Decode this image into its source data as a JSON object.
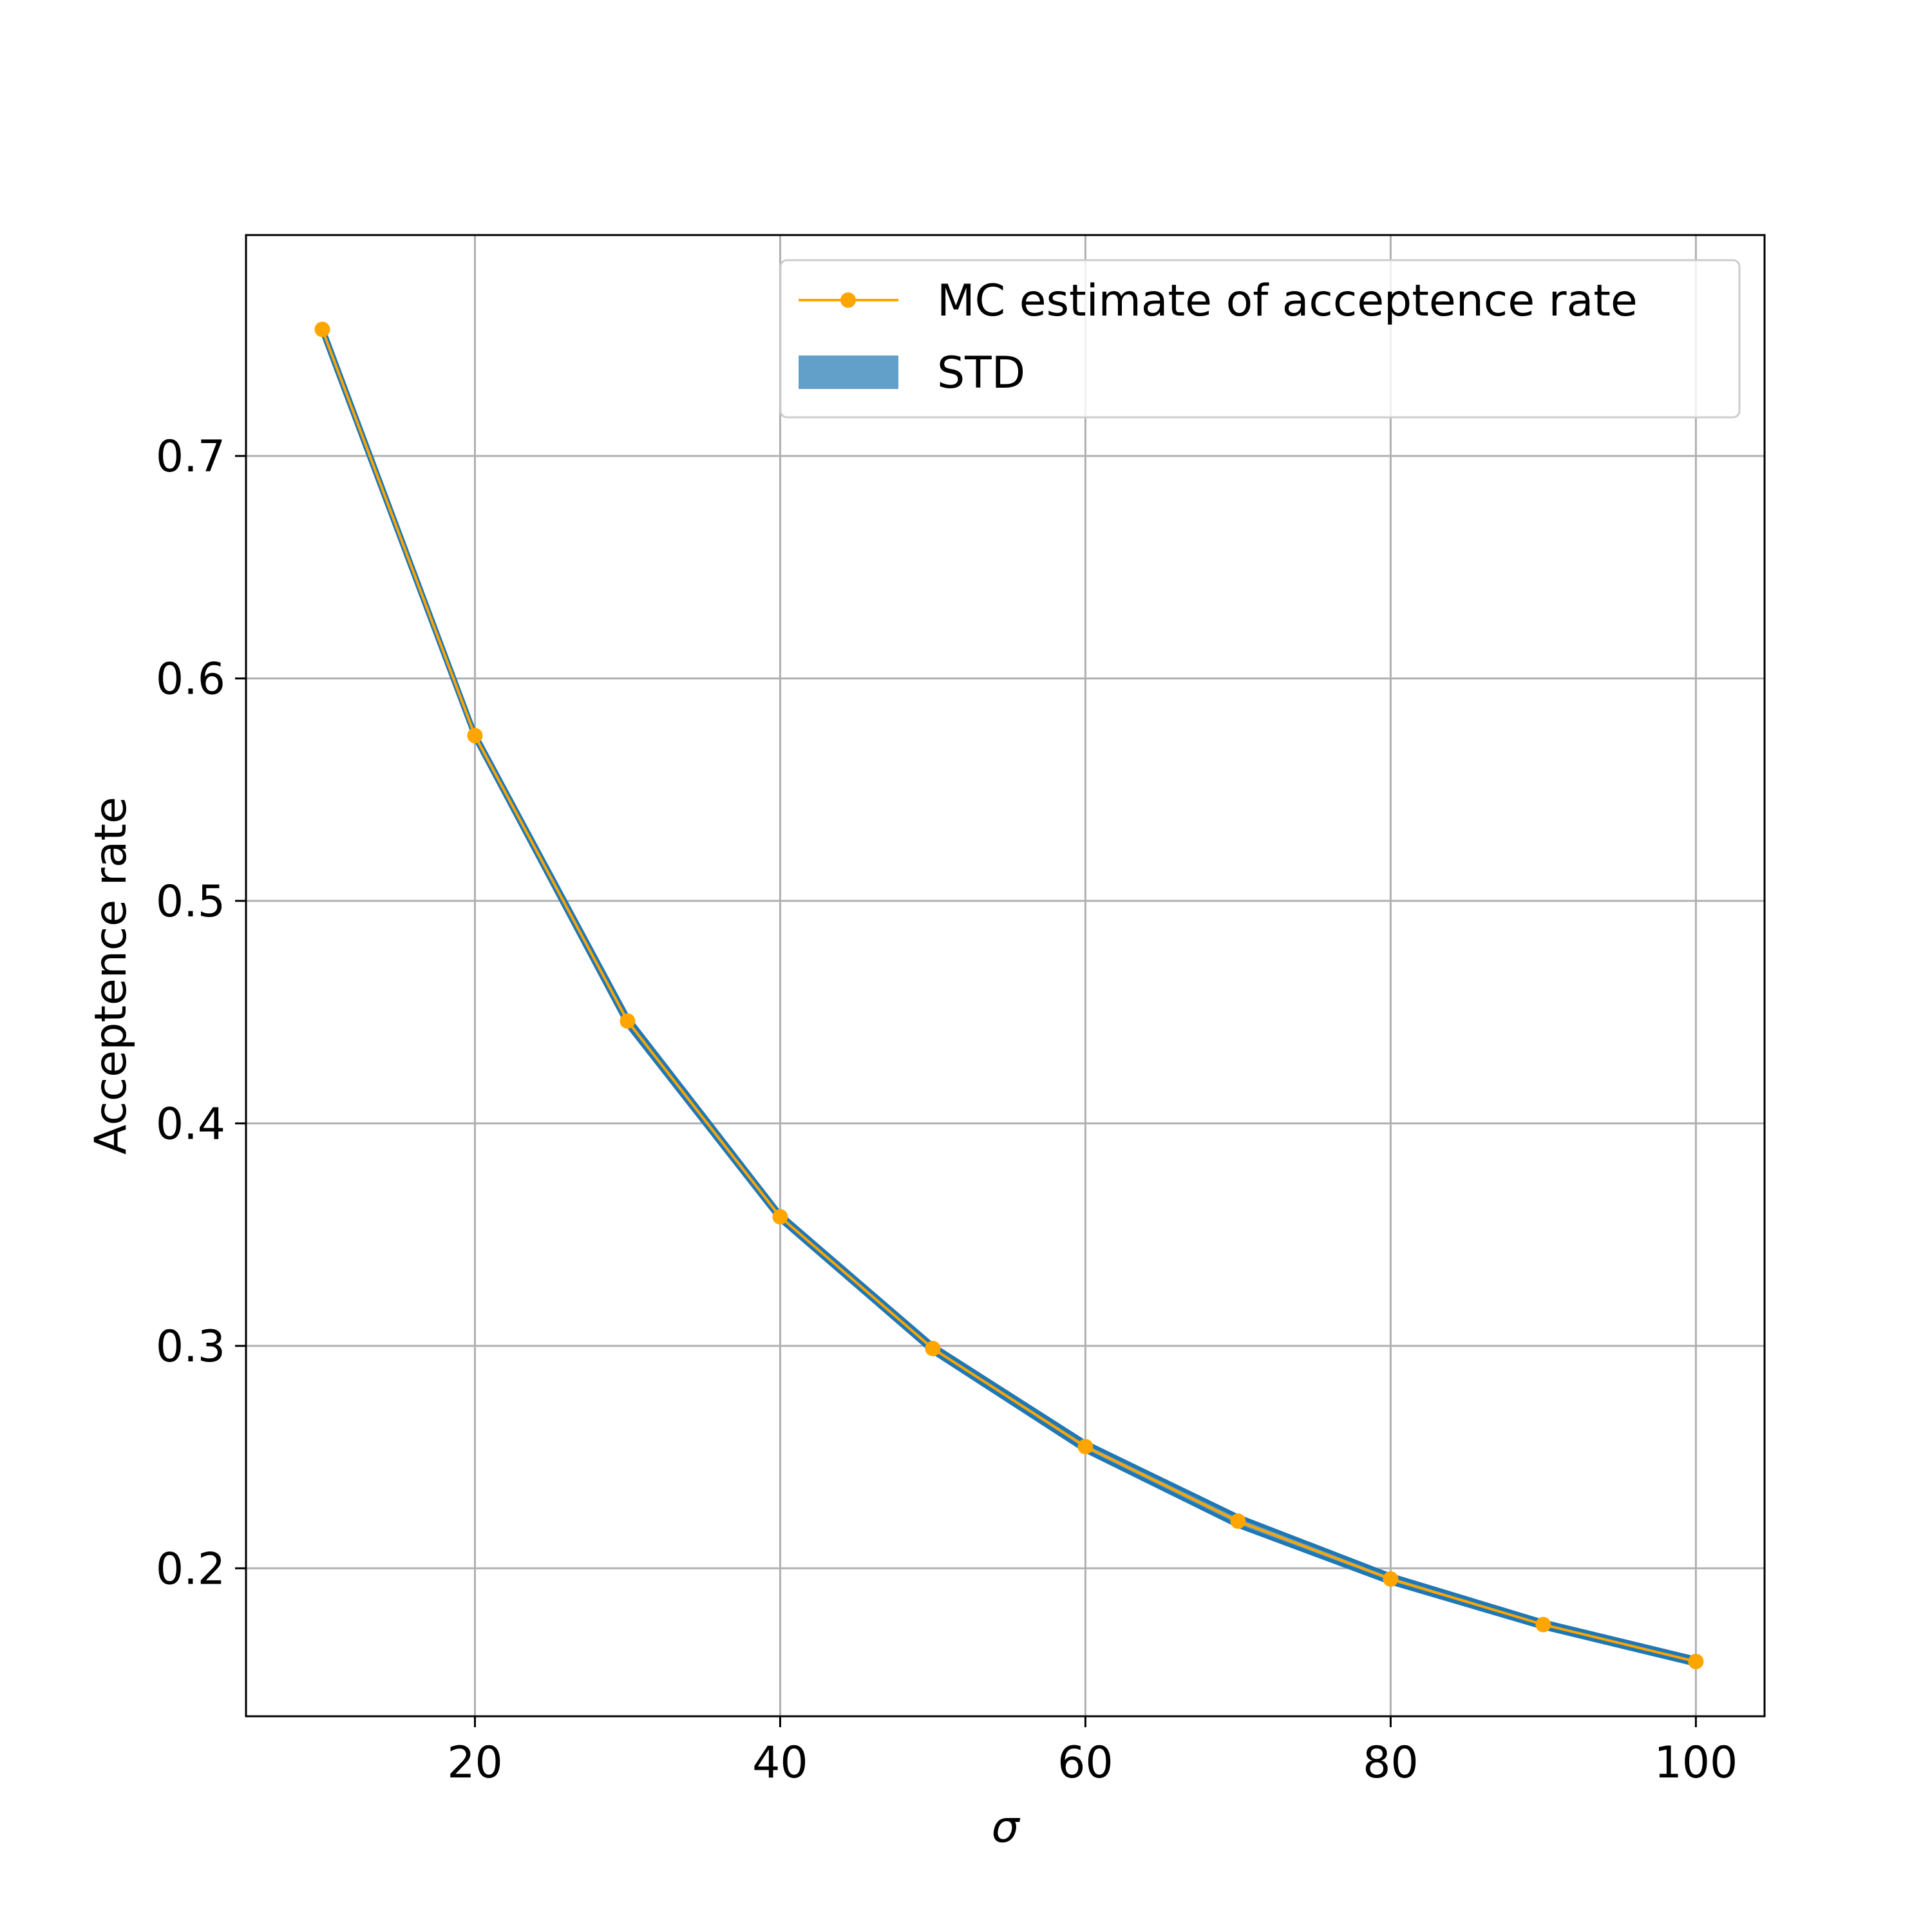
{
  "chart_data": {
    "type": "line",
    "xlabel": "σ",
    "ylabel": "Acceptence rate",
    "xlim": [
      5,
      104.5
    ],
    "ylim": [
      0.1335,
      0.7993
    ],
    "xticks": [
      20,
      40,
      60,
      80,
      100
    ],
    "xtick_labels": [
      "20",
      "40",
      "60",
      "80",
      "100"
    ],
    "yticks": [
      0.2,
      0.3,
      0.4,
      0.5,
      0.6,
      0.7
    ],
    "ytick_labels": [
      "0.2",
      "0.3",
      "0.4",
      "0.5",
      "0.6",
      "0.7"
    ],
    "grid": true,
    "legend_position": "upper right",
    "x": [
      10,
      20,
      30,
      40,
      50,
      60,
      70,
      80,
      90,
      100
    ],
    "series": [
      {
        "name": "MC estimate of acceptence rate",
        "kind": "line-with-markers",
        "color": "#ffa500",
        "values": [
          0.7569,
          0.5743,
          0.446,
          0.358,
          0.2988,
          0.2547,
          0.2212,
          0.1952,
          0.1747,
          0.1581
        ]
      },
      {
        "name": "STD",
        "kind": "band",
        "color": "#1f77b4",
        "lower": [
          0.7553,
          0.573,
          0.444,
          0.3565,
          0.2972,
          0.2528,
          0.219,
          0.1935,
          0.1733,
          0.1567
        ],
        "upper": [
          0.7585,
          0.5756,
          0.448,
          0.3595,
          0.3004,
          0.2566,
          0.2234,
          0.1969,
          0.1761,
          0.1595
        ]
      }
    ]
  }
}
